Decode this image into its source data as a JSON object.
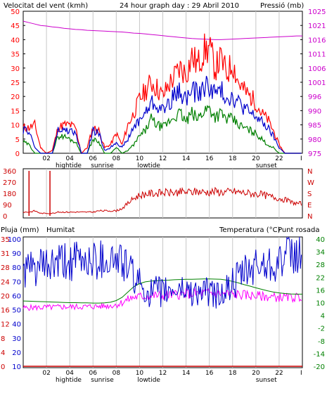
{
  "colors": {
    "background": "#ffffff",
    "frame": "#000000",
    "grid": "#c8c8c8",
    "wind_speed": "#ff0000",
    "wind_avg": "#0000cc",
    "wind_min": "#008000",
    "pressure": "#cc00cc",
    "wind_dir": "#cc0000",
    "humidity": "#0000cc",
    "temperature": "#008000",
    "dewpoint": "#ff00ff",
    "rain": "#cc0000"
  },
  "header": {
    "left_title": "Velocitat del vent (kmh)",
    "center_title": "24 hour graph day : 29 Abril 2010",
    "right_title": "Pressió (mb)"
  },
  "bottom_header": {
    "rain": "Pluja (mm)",
    "humidity": "Humitat",
    "temperature": "Temperatura (°C)",
    "dewpoint": "Punt rosada"
  },
  "x_axis": {
    "hour_labels": [
      "02",
      "04",
      "06",
      "08",
      "10",
      "12",
      "14",
      "16",
      "18",
      "20",
      "22",
      "I"
    ],
    "events": [
      {
        "label": "hightide",
        "hour": 3.9
      },
      {
        "label": "sunrise",
        "hour": 6.8
      },
      {
        "label": "lowtide",
        "hour": 10.8
      },
      {
        "label": "sunset",
        "hour": 20.9
      }
    ]
  },
  "chart_data": [
    {
      "type": "line",
      "name": "wind-pressure",
      "title": "24 hour graph day : 29 Abril 2010",
      "xlabel": "",
      "ylabel": "Velocitat del vent (kmh)",
      "ylim": [
        0,
        50
      ],
      "y_ticks": [
        "0",
        "5",
        "10",
        "15",
        "20",
        "25",
        "30",
        "35",
        "40",
        "45",
        "50"
      ],
      "y2label": "Pressió (mb)",
      "y2lim": [
        975,
        1025
      ],
      "y2_ticks": [
        "975",
        "980",
        "985",
        "990",
        "996",
        "1001",
        "1006",
        "1011",
        "1016",
        "1021",
        "1025"
      ],
      "x_hours": [
        0,
        0.5,
        1,
        1.5,
        2,
        2.5,
        3,
        3.5,
        4,
        4.5,
        5,
        5.5,
        6,
        6.5,
        7,
        7.5,
        8,
        8.5,
        9,
        9.5,
        10,
        10.5,
        11,
        11.5,
        12,
        12.5,
        13,
        13.5,
        14,
        14.5,
        15,
        15.5,
        16,
        16.5,
        17,
        17.5,
        18,
        18.5,
        19,
        19.5,
        20,
        20.5,
        21,
        21.5,
        22,
        22.5,
        23,
        23.5
      ],
      "series": [
        {
          "key": "gust",
          "values": [
            9,
            9,
            10,
            2,
            0,
            1,
            9,
            10,
            10,
            9,
            0,
            2,
            9,
            8,
            2,
            3,
            7,
            3,
            10,
            14,
            19,
            22,
            25,
            23,
            20,
            24,
            27,
            30,
            28,
            34,
            31,
            36,
            37,
            30,
            33,
            28,
            32,
            25,
            22,
            20,
            18,
            14,
            12,
            8,
            3,
            0,
            0,
            0
          ]
        },
        {
          "key": "average",
          "values": [
            8,
            8,
            2,
            0,
            0,
            0,
            8,
            8,
            8,
            7,
            0,
            0,
            8,
            7,
            1,
            2,
            4,
            2,
            5,
            9,
            12,
            14,
            18,
            17,
            15,
            18,
            20,
            22,
            19,
            22,
            21,
            23,
            24,
            21,
            22,
            20,
            20,
            18,
            16,
            14,
            13,
            11,
            9,
            6,
            2,
            0,
            0,
            0
          ]
        },
        {
          "key": "minimum",
          "values": [
            4,
            3,
            0,
            0,
            0,
            0,
            6,
            6,
            5,
            4,
            0,
            0,
            5,
            4,
            0,
            0,
            2,
            0,
            1,
            3,
            6,
            8,
            12,
            10,
            9,
            11,
            13,
            14,
            11,
            14,
            12,
            15,
            16,
            13,
            14,
            12,
            12,
            10,
            9,
            8,
            7,
            5,
            3,
            2,
            0,
            0,
            0,
            0
          ]
        },
        {
          "key": "pressure",
          "values": [
            1021.5,
            1021,
            1020.5,
            1020,
            1019.8,
            1019.5,
            1019.3,
            1019,
            1018.8,
            1018.6,
            1018.5,
            1018.3,
            1018.2,
            1018.1,
            1018,
            1017.9,
            1017.8,
            1017.7,
            1017.5,
            1017.3,
            1017.2,
            1017,
            1016.8,
            1016.6,
            1016.4,
            1016.2,
            1016,
            1015.8,
            1015.6,
            1015.4,
            1015.3,
            1015.2,
            1015.1,
            1015,
            1015,
            1015.1,
            1015.2,
            1015.3,
            1015.4,
            1015.5,
            1015.6,
            1015.7,
            1015.8,
            1015.9,
            1016,
            1016.1,
            1016.2,
            1016.3
          ]
        }
      ]
    },
    {
      "type": "line",
      "name": "wind-direction",
      "ylim": [
        0,
        360
      ],
      "y_ticks": [
        "360",
        "270",
        "180",
        "90",
        "0"
      ],
      "right_labels": [
        "N",
        "W",
        "S",
        "E",
        "N"
      ],
      "x_hours": [
        0,
        0.5,
        1,
        1.5,
        2,
        2.5,
        3,
        3.5,
        4,
        4.5,
        5,
        5.5,
        6,
        6.5,
        7,
        7.5,
        8,
        8.5,
        9,
        9.5,
        10,
        10.5,
        11,
        11.5,
        12,
        12.5,
        13,
        13.5,
        14,
        14.5,
        15,
        15.5,
        16,
        16.5,
        17,
        17.5,
        18,
        18.5,
        19,
        19.5,
        20,
        20.5,
        21,
        21.5,
        22,
        22.5,
        23,
        23.5
      ],
      "series": [
        {
          "key": "direction",
          "values": [
            30,
            30,
            40,
            20,
            20,
            20,
            30,
            30,
            30,
            30,
            30,
            30,
            30,
            40,
            40,
            40,
            40,
            60,
            100,
            140,
            165,
            175,
            180,
            180,
            185,
            185,
            185,
            190,
            190,
            190,
            195,
            190,
            190,
            195,
            190,
            190,
            195,
            190,
            185,
            180,
            175,
            170,
            160,
            150,
            140,
            130,
            110,
            100
          ]
        }
      ],
      "spikes": [
        {
          "hour": 0.5,
          "value": 360
        },
        {
          "hour": 2.3,
          "value": 360
        }
      ]
    },
    {
      "type": "line",
      "name": "humidity-temperature",
      "ylabel": "Pluja (mm)",
      "ylim": [
        0,
        35
      ],
      "y_ticks": [
        "0",
        "4",
        "8",
        "12",
        "16",
        "20",
        "24",
        "28",
        "31",
        "35"
      ],
      "y_humidity_ticks": [
        "10",
        "20",
        "30",
        "40",
        "50",
        "60",
        "70",
        "80",
        "90",
        "100"
      ],
      "humidity_lim": [
        10,
        100
      ],
      "y2label": "Temperatura (°C)",
      "y2lim": [
        -20,
        40
      ],
      "y2_ticks": [
        "-20",
        "-14",
        "-8",
        "-2",
        "4",
        "10",
        "16",
        "22",
        "28",
        "34",
        "40"
      ],
      "x_hours": [
        0,
        0.5,
        1,
        1.5,
        2,
        2.5,
        3,
        3.5,
        4,
        4.5,
        5,
        5.5,
        6,
        6.5,
        7,
        7.5,
        8,
        8.5,
        9,
        9.5,
        10,
        10.5,
        11,
        11.5,
        12,
        12.5,
        13,
        13.5,
        14,
        14.5,
        15,
        15.5,
        16,
        16.5,
        17,
        17.5,
        18,
        18.5,
        19,
        19.5,
        20,
        20.5,
        21,
        21.5,
        22,
        22.5,
        23,
        23.5
      ],
      "series": [
        {
          "key": "humidity",
          "values": [
            77,
            78,
            79,
            80,
            80,
            81,
            82,
            83,
            83,
            84,
            84,
            85,
            85,
            86,
            86,
            86,
            85,
            84,
            80,
            73,
            68,
            64,
            62,
            63,
            62,
            63,
            64,
            65,
            64,
            63,
            62,
            63,
            62,
            60,
            61,
            64,
            68,
            72,
            75,
            78,
            80,
            82,
            83,
            84,
            85,
            86,
            87,
            88
          ]
        },
        {
          "key": "temperature",
          "values": [
            10.8,
            10.7,
            10.6,
            10.5,
            10.4,
            10.3,
            10.2,
            10.1,
            10,
            10,
            9.9,
            9.9,
            9.8,
            9.8,
            9.9,
            10.2,
            11,
            12.5,
            15,
            17.5,
            19,
            19.8,
            20.2,
            20.4,
            20.5,
            20.6,
            20.8,
            20.9,
            21,
            21,
            21.1,
            21.2,
            21.2,
            21.1,
            21,
            20.6,
            20,
            19.3,
            18.5,
            17.8,
            17,
            16.3,
            15.6,
            15,
            14.6,
            14.3,
            14.1,
            14
          ]
        },
        {
          "key": "dewpoint",
          "values": [
            7.5,
            7.6,
            7.7,
            7.7,
            7.8,
            7.8,
            7.9,
            8,
            8,
            8,
            8.1,
            8.1,
            8.2,
            8.3,
            8.4,
            8.6,
            9,
            10,
            11.5,
            12.5,
            12.8,
            13,
            13.2,
            13.4,
            13.5,
            13.7,
            13.8,
            14,
            14.2,
            14.2,
            14.3,
            14.4,
            14.5,
            14.4,
            14.3,
            14.2,
            14,
            13.8,
            13.6,
            13.4,
            13.2,
            13,
            12.8,
            12.6,
            12.5,
            12.4,
            12.4,
            12.5
          ]
        },
        {
          "key": "rain",
          "values": [
            0,
            0,
            0,
            0,
            0,
            0,
            0,
            0,
            0,
            0,
            0,
            0,
            0,
            0,
            0,
            0,
            0,
            0,
            0,
            0,
            0,
            0,
            0,
            0,
            0,
            0,
            0,
            0,
            0,
            0,
            0,
            0,
            0,
            0,
            0,
            0,
            0,
            0,
            0,
            0,
            0,
            0,
            0,
            0,
            0,
            0,
            0,
            0
          ]
        }
      ]
    }
  ]
}
